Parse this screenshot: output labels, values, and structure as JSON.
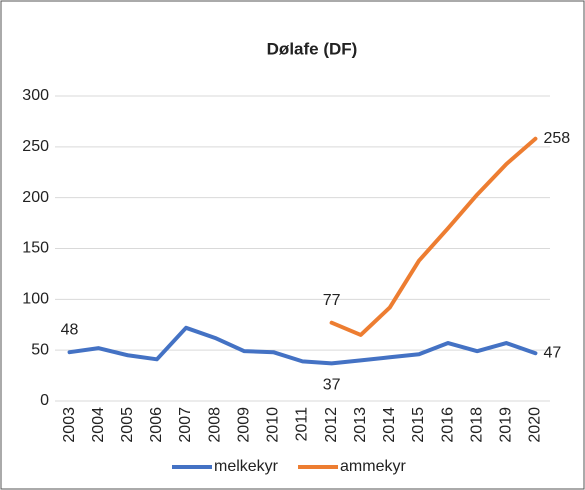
{
  "chart_data": {
    "type": "line",
    "title": "Dølafe (DF)",
    "categories": [
      "2003",
      "2004",
      "2005",
      "2006",
      "2007",
      "2008",
      "2009",
      "2010",
      "2011",
      "2012",
      "2013",
      "2014",
      "2015",
      "2016",
      "2018",
      "2019",
      "2020"
    ],
    "series": [
      {
        "name": "melkekyr",
        "color": "#4472c4",
        "values": [
          48,
          52,
          45,
          41,
          72,
          62,
          49,
          48,
          39,
          37,
          40,
          43,
          46,
          57,
          49,
          57,
          47
        ],
        "value_labels": [
          48,
          null,
          null,
          null,
          null,
          null,
          null,
          null,
          null,
          37,
          null,
          null,
          null,
          null,
          null,
          null,
          47
        ]
      },
      {
        "name": "ammekyr",
        "color": "#ed7d31",
        "values": [
          null,
          null,
          null,
          null,
          null,
          null,
          null,
          null,
          null,
          77,
          65,
          92,
          138,
          170,
          203,
          233,
          258
        ],
        "value_labels": [
          null,
          null,
          null,
          null,
          null,
          null,
          null,
          null,
          null,
          77,
          null,
          null,
          null,
          null,
          null,
          null,
          258
        ]
      }
    ],
    "ylim": [
      0,
      300
    ],
    "yticks": [
      0,
      50,
      100,
      150,
      200,
      250,
      300
    ],
    "grid": true,
    "legend": "bottom"
  }
}
